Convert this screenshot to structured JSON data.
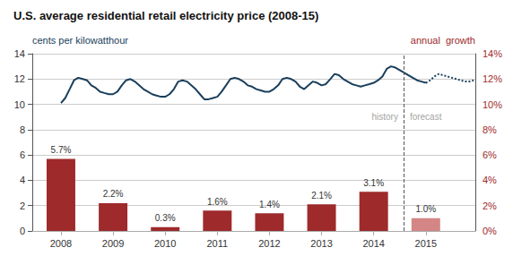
{
  "chart_data": {
    "type": "combo",
    "title": "U.S. average residential retail electricity price (2008-15)",
    "ylabel": "cents per kilowatthour",
    "y2label": "annual  growth",
    "xlim": [
      2007.45,
      2015.95
    ],
    "xticks": [
      2008,
      2009,
      2010,
      2011,
      2012,
      2013,
      2014,
      2015
    ],
    "ylim": [
      0,
      14
    ],
    "yticks": [
      0,
      2,
      4,
      6,
      8,
      10,
      12,
      14
    ],
    "y2lim": [
      0,
      14
    ],
    "y2ticks": [
      {
        "value": 0,
        "label": "0%"
      },
      {
        "value": 2,
        "label": "2%"
      },
      {
        "value": 4,
        "label": "4%"
      },
      {
        "value": 6,
        "label": "6%"
      },
      {
        "value": 8,
        "label": "8%"
      },
      {
        "value": 10,
        "label": "10%"
      },
      {
        "value": 12,
        "label": "12%"
      },
      {
        "value": 14,
        "label": "14%"
      }
    ],
    "grid": true,
    "series": [
      {
        "type": "bar",
        "axis": "y2",
        "x": [
          2008,
          2009,
          2010,
          2011,
          2012,
          2013,
          2014,
          2015
        ],
        "values": [
          5.7,
          2.2,
          0.3,
          1.6,
          1.4,
          2.1,
          3.1,
          1.0
        ],
        "value_labels": [
          "5.7%",
          "2.2%",
          "0.3%",
          "1.6%",
          "1.4%",
          "2.1%",
          "3.1%",
          "1.0%"
        ],
        "colors": [
          "#9e2a2b",
          "#9e2a2b",
          "#9e2a2b",
          "#9e2a2b",
          "#9e2a2b",
          "#9e2a2b",
          "#9e2a2b",
          "#d48585"
        ],
        "data_labels": true
      },
      {
        "type": "line",
        "color": "#1a3f5c",
        "line_style": "solid",
        "x": [
          2008.0,
          2008.083,
          2008.167,
          2008.25,
          2008.333,
          2008.417,
          2008.5,
          2008.583,
          2008.667,
          2008.75,
          2008.833,
          2008.917,
          2009.0,
          2009.083,
          2009.167,
          2009.25,
          2009.333,
          2009.417,
          2009.5,
          2009.583,
          2009.667,
          2009.75,
          2009.833,
          2009.917,
          2010.0,
          2010.083,
          2010.167,
          2010.25,
          2010.333,
          2010.417,
          2010.5,
          2010.583,
          2010.667,
          2010.75,
          2010.833,
          2010.917,
          2011.0,
          2011.083,
          2011.167,
          2011.25,
          2011.333,
          2011.417,
          2011.5,
          2011.583,
          2011.667,
          2011.75,
          2011.833,
          2011.917,
          2012.0,
          2012.083,
          2012.167,
          2012.25,
          2012.333,
          2012.417,
          2012.5,
          2012.583,
          2012.667,
          2012.75,
          2012.833,
          2012.917,
          2013.0,
          2013.083,
          2013.167,
          2013.25,
          2013.333,
          2013.417,
          2013.5,
          2013.583,
          2013.667,
          2013.75,
          2013.833,
          2013.917,
          2014.0,
          2014.083,
          2014.167,
          2014.25,
          2014.333,
          2014.417,
          2014.5,
          2014.583,
          2014.667,
          2014.75,
          2014.833,
          2014.917,
          2015.0
        ],
        "values": [
          10.1,
          10.5,
          11.2,
          11.9,
          12.1,
          12.0,
          11.9,
          11.5,
          11.3,
          11.0,
          10.9,
          10.8,
          10.8,
          11.0,
          11.5,
          11.9,
          12.0,
          11.8,
          11.5,
          11.2,
          11.0,
          10.8,
          10.7,
          10.6,
          10.6,
          10.8,
          11.2,
          11.8,
          11.9,
          11.8,
          11.5,
          11.2,
          10.8,
          10.4,
          10.4,
          10.5,
          10.6,
          11.0,
          11.5,
          12.0,
          12.1,
          12.0,
          11.8,
          11.5,
          11.4,
          11.2,
          11.1,
          11.0,
          11.0,
          11.2,
          11.5,
          12.0,
          12.1,
          12.0,
          11.8,
          11.4,
          11.2,
          11.5,
          11.8,
          11.7,
          11.5,
          11.6,
          12.0,
          12.4,
          12.3,
          12.0,
          11.8,
          11.6,
          11.5,
          11.4,
          11.5,
          11.6,
          11.7,
          11.9,
          12.2,
          12.8,
          13.0,
          12.9,
          12.7,
          12.5,
          12.3,
          12.1,
          11.9,
          11.8,
          11.7
        ]
      },
      {
        "type": "line",
        "color": "#1a3f5c",
        "line_style": "dotted",
        "x": [
          2015.0,
          2015.083,
          2015.167,
          2015.25,
          2015.333,
          2015.417,
          2015.5,
          2015.583,
          2015.667,
          2015.75,
          2015.833,
          2015.917
        ],
        "values": [
          11.7,
          11.9,
          12.2,
          12.4,
          12.3,
          12.2,
          12.1,
          12.0,
          11.9,
          11.8,
          11.8,
          11.9
        ]
      }
    ],
    "divider": {
      "x": 2014.58,
      "line_style": "dashed",
      "label_y": 9,
      "left_label": "history",
      "right_label": "forecast"
    }
  }
}
